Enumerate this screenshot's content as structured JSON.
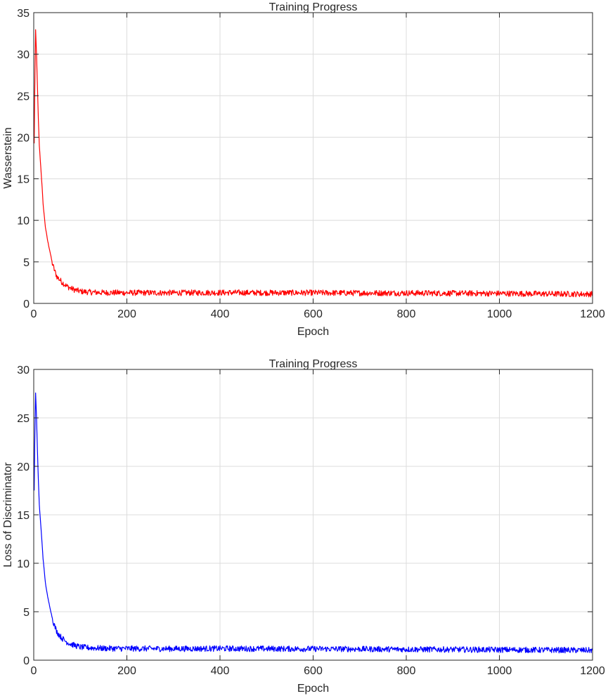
{
  "chart_data": [
    {
      "type": "line",
      "title": "Training Progress",
      "xlabel": "Epoch",
      "ylabel": "Wasserstein",
      "xlim": [
        0,
        1200
      ],
      "ylim": [
        0,
        35
      ],
      "xticks": [
        0,
        200,
        400,
        600,
        800,
        1000,
        1200
      ],
      "yticks": [
        0,
        5,
        10,
        15,
        20,
        25,
        30,
        35
      ],
      "grid": true,
      "color": "#ff0000",
      "series": [
        {
          "x": [
            0,
            2,
            4,
            6,
            8,
            10,
            12,
            15,
            18,
            20,
            25,
            30,
            35,
            40,
            45,
            50,
            60,
            70,
            80,
            90,
            100,
            120,
            150,
            200,
            300,
            400,
            500,
            600,
            700,
            800,
            900,
            1000,
            1100,
            1200
          ],
          "values": [
            13.5,
            25,
            32.9,
            30,
            26,
            22,
            19,
            16.5,
            14,
            12,
            9.2,
            7.5,
            6.2,
            4.8,
            3.9,
            3.2,
            2.6,
            2.1,
            1.8,
            1.6,
            1.45,
            1.35,
            1.3,
            1.28,
            1.27,
            1.3,
            1.28,
            1.28,
            1.25,
            1.25,
            1.22,
            1.2,
            1.15,
            1.12
          ]
        }
      ],
      "noise_amplitude": 0.35
    },
    {
      "type": "line",
      "title": "Training Progress",
      "xlabel": "Epoch",
      "ylabel": "Loss of Discriminator",
      "xlim": [
        0,
        1200
      ],
      "ylim": [
        0,
        30
      ],
      "xticks": [
        0,
        200,
        400,
        600,
        800,
        1000,
        1200
      ],
      "yticks": [
        0,
        5,
        10,
        15,
        20,
        25,
        30
      ],
      "grid": true,
      "color": "#0000ff",
      "series": [
        {
          "x": [
            0,
            2,
            4,
            6,
            8,
            10,
            12,
            15,
            18,
            20,
            25,
            30,
            35,
            40,
            45,
            50,
            60,
            70,
            80,
            90,
            100,
            120,
            150,
            200,
            300,
            400,
            500,
            600,
            700,
            800,
            900,
            1000,
            1100,
            1200
          ],
          "values": [
            13,
            22,
            27.6,
            25,
            21.5,
            18.5,
            16,
            14,
            12,
            10.5,
            8,
            6.5,
            5.4,
            4.3,
            3.5,
            2.9,
            2.3,
            1.9,
            1.65,
            1.5,
            1.35,
            1.28,
            1.22,
            1.2,
            1.18,
            1.2,
            1.18,
            1.17,
            1.15,
            1.12,
            1.1,
            1.08,
            1.05,
            1.02
          ]
        }
      ],
      "noise_amplitude": 0.3
    }
  ]
}
